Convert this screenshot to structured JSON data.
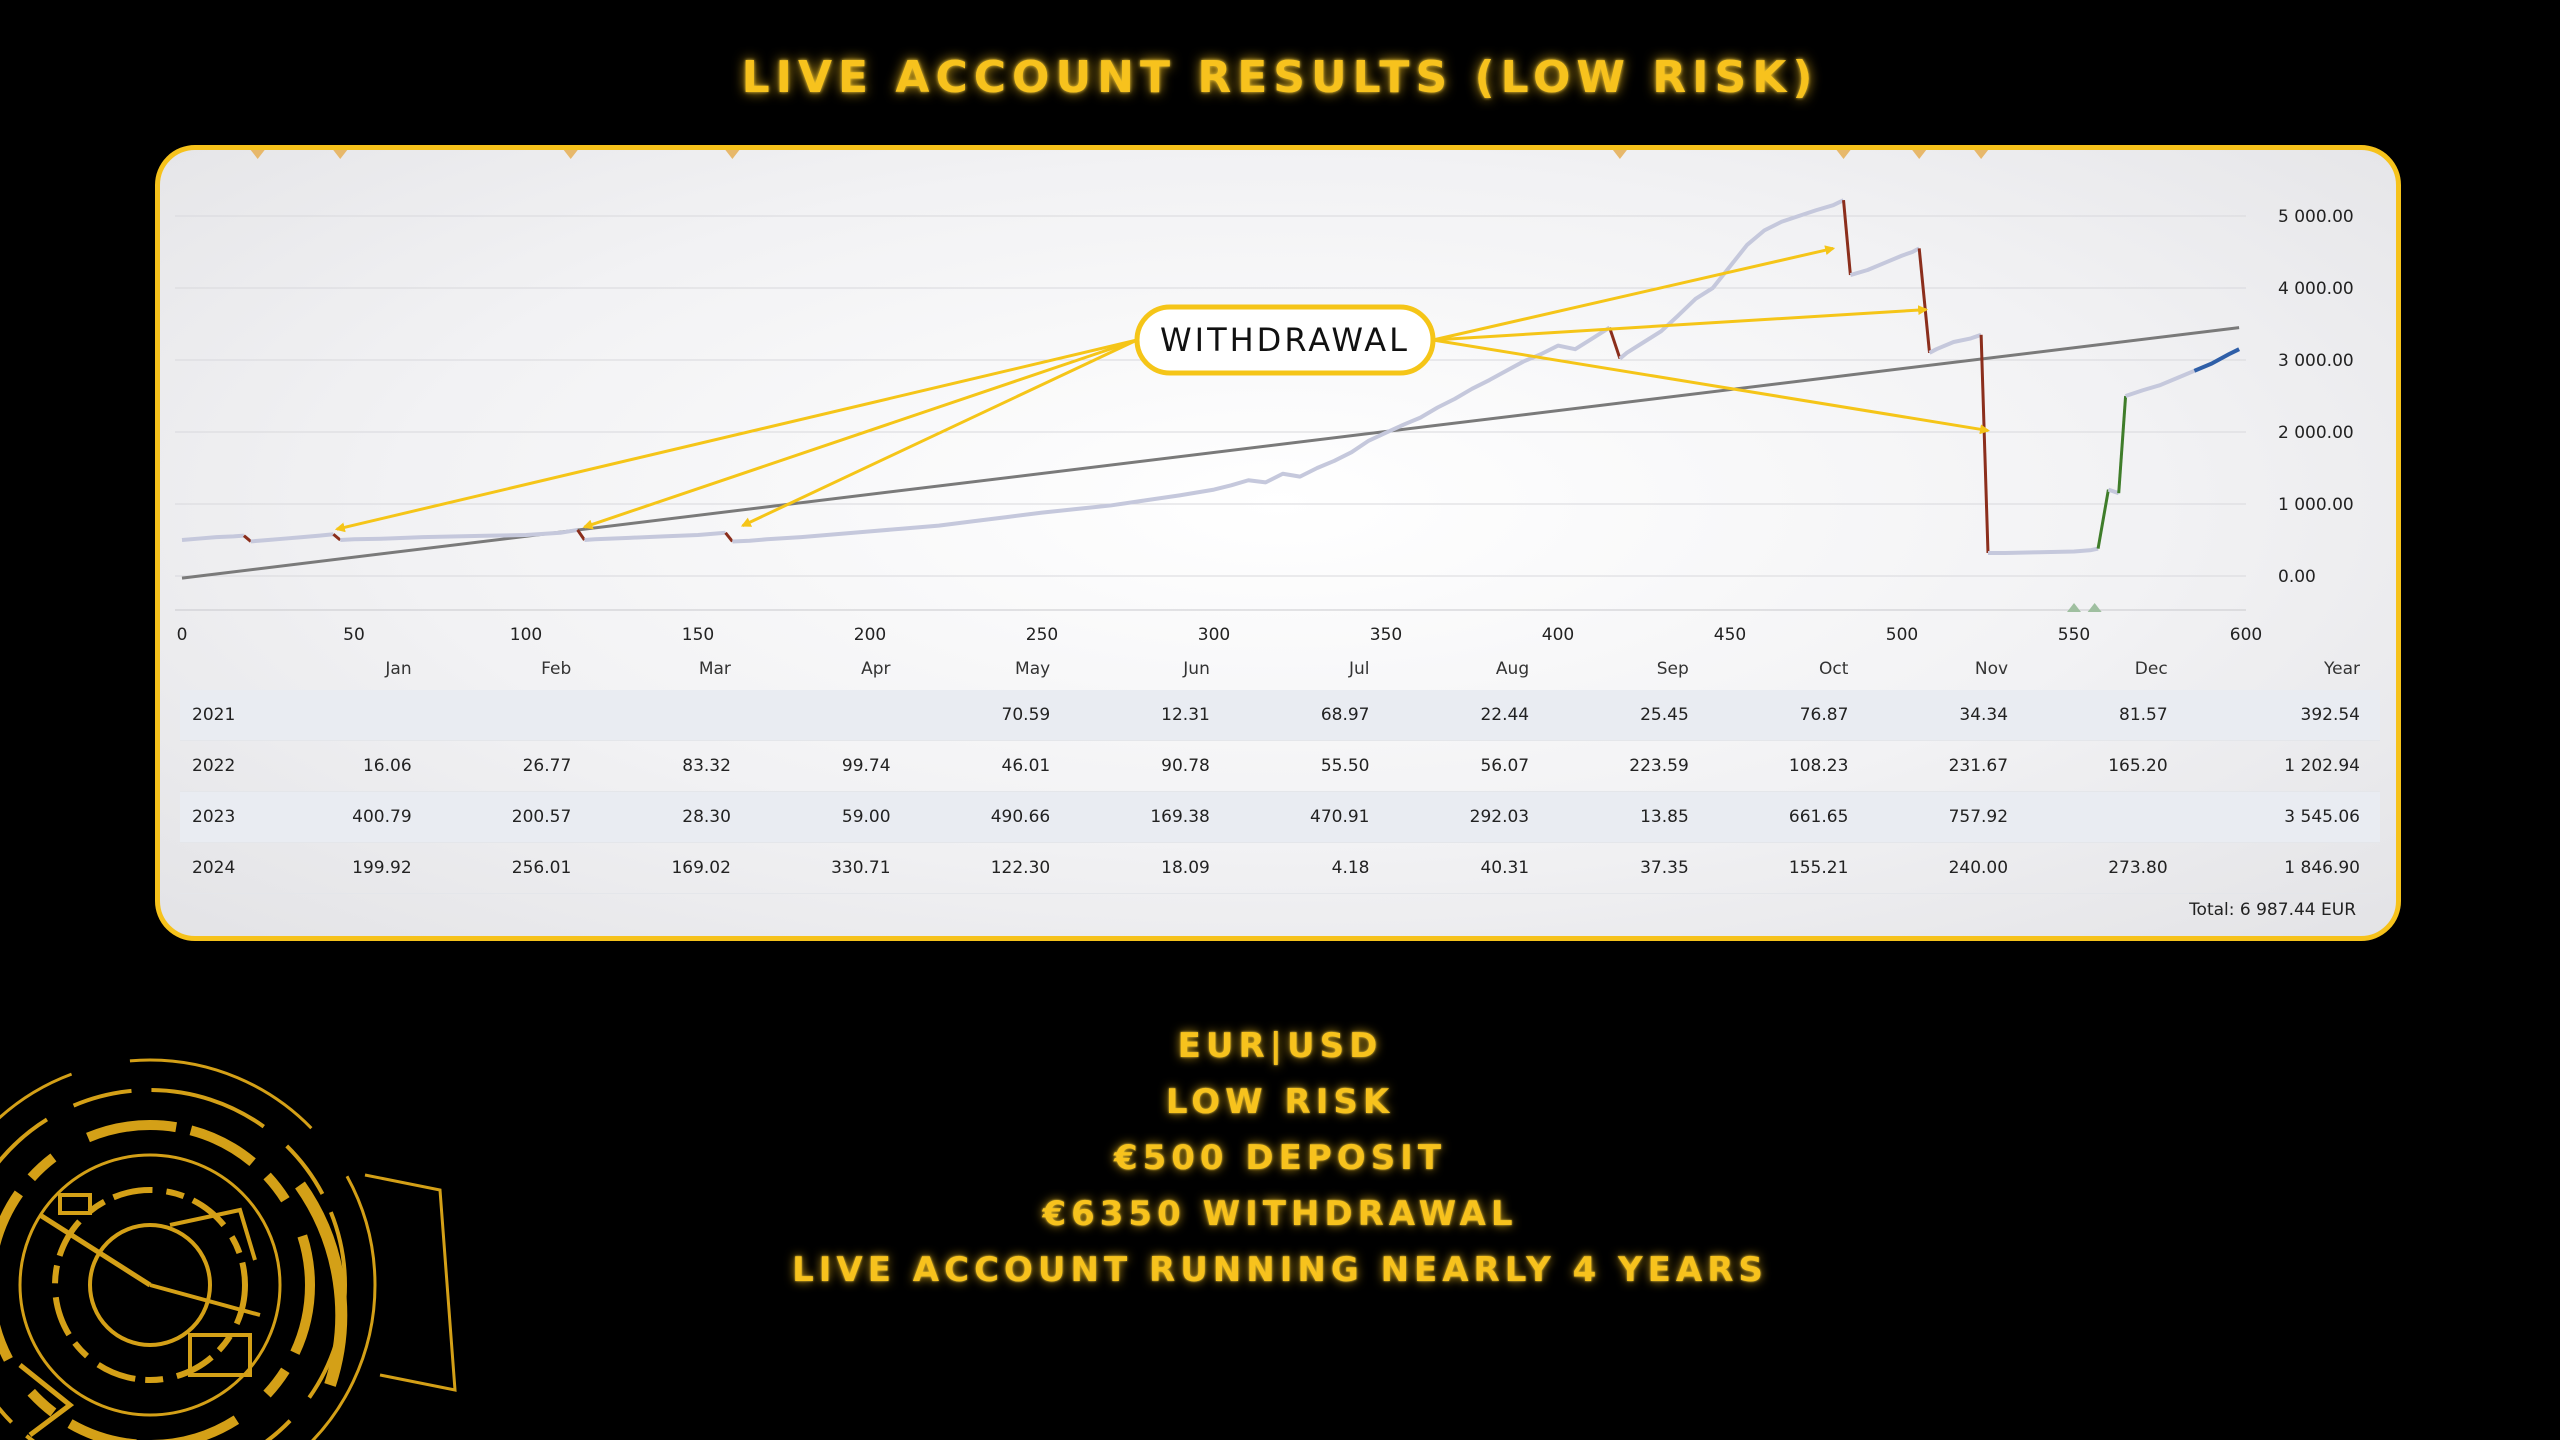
{
  "title": "LIVE ACCOUNT RESULTS (LOW RISK)",
  "colors": {
    "accent": "#f6c21b",
    "equity_line": "#c5c8dc",
    "trend_line": "#7a7a7a",
    "drop_segment": "#8b2e1c",
    "rise_segment": "#3f7d2a",
    "current_segment": "#2f5fa8",
    "arrow": "#f5c518",
    "background": "#000000"
  },
  "annotation": {
    "label": "WITHDRAWAL"
  },
  "chart_data": {
    "type": "line",
    "x_ticks": [
      0,
      50,
      100,
      150,
      200,
      250,
      300,
      350,
      400,
      450,
      500,
      550,
      600
    ],
    "y_ticks": [
      "0.00",
      "1 000.00",
      "2 000.00",
      "3 000.00",
      "4 000.00",
      "5 000.00"
    ],
    "xlim": [
      0,
      600
    ],
    "ylim": [
      -500,
      5500
    ],
    "grid": true,
    "series": [
      {
        "role": "equity",
        "x": [
          0,
          5,
          10,
          15,
          18,
          20,
          25,
          30,
          35,
          40,
          44,
          46,
          50,
          60,
          70,
          80,
          90,
          100,
          110,
          115,
          117,
          120,
          130,
          140,
          150,
          158,
          160,
          165,
          170,
          180,
          190,
          200,
          210,
          220,
          230,
          240,
          250,
          260,
          270,
          280,
          290,
          300,
          305,
          310,
          315,
          320,
          325,
          330,
          335,
          340,
          345,
          350,
          355,
          360,
          365,
          370,
          375,
          380,
          385,
          390,
          395,
          400,
          405,
          410,
          415,
          418,
          420,
          425,
          430,
          435,
          440,
          445,
          450,
          455,
          460,
          465,
          470,
          475,
          480,
          483,
          485,
          490,
          495,
          500,
          503,
          505,
          508,
          510,
          515,
          520,
          523,
          525,
          530,
          540,
          550,
          555,
          557,
          560,
          563,
          565,
          570,
          575,
          580,
          585,
          590,
          595,
          598
        ],
        "y": [
          500,
          520,
          540,
          550,
          560,
          480,
          500,
          520,
          540,
          560,
          580,
          500,
          510,
          520,
          540,
          550,
          560,
          570,
          600,
          640,
          500,
          510,
          530,
          550,
          570,
          600,
          480,
          490,
          510,
          540,
          580,
          620,
          660,
          700,
          760,
          820,
          880,
          930,
          980,
          1050,
          1120,
          1200,
          1260,
          1330,
          1300,
          1420,
          1380,
          1500,
          1600,
          1720,
          1880,
          1990,
          2100,
          2200,
          2340,
          2460,
          2600,
          2720,
          2850,
          2980,
          3080,
          3200,
          3150,
          3300,
          3450,
          3020,
          3100,
          3250,
          3400,
          3620,
          3850,
          4000,
          4300,
          4600,
          4800,
          4920,
          5000,
          5080,
          5150,
          5220,
          4180,
          4250,
          4350,
          4450,
          4500,
          4550,
          3100,
          3150,
          3250,
          3300,
          3350,
          320,
          320,
          330,
          340,
          360,
          380,
          1200,
          1150,
          2500,
          2580,
          2650,
          2750,
          2850,
          2950,
          3080,
          3150
        ]
      },
      {
        "role": "trend",
        "x": [
          0,
          598
        ],
        "y": [
          -30,
          3450
        ]
      }
    ],
    "monthly_table": {
      "columns": [
        "",
        "Jan",
        "Feb",
        "Mar",
        "Apr",
        "May",
        "Jun",
        "Jul",
        "Aug",
        "Sep",
        "Oct",
        "Nov",
        "Dec",
        "Year"
      ],
      "rows": [
        [
          "2021",
          "",
          "",
          "",
          "",
          "70.59",
          "12.31",
          "68.97",
          "22.44",
          "25.45",
          "76.87",
          "34.34",
          "81.57",
          "392.54"
        ],
        [
          "2022",
          "16.06",
          "26.77",
          "83.32",
          "99.74",
          "46.01",
          "90.78",
          "55.50",
          "56.07",
          "223.59",
          "108.23",
          "231.67",
          "165.20",
          "1 202.94"
        ],
        [
          "2023",
          "400.79",
          "200.57",
          "28.30",
          "59.00",
          "490.66",
          "169.38",
          "470.91",
          "292.03",
          "13.85",
          "661.65",
          "757.92",
          "",
          "3 545.06"
        ],
        [
          "2024",
          "199.92",
          "256.01",
          "169.02",
          "330.71",
          "122.30",
          "18.09",
          "4.18",
          "40.31",
          "37.35",
          "155.21",
          "240.00",
          "273.80",
          "1 846.90"
        ]
      ],
      "total": "Total: 6 987.44 EUR"
    }
  },
  "info_lines": [
    "EUR|USD",
    "LOW RISK",
    "€500 DEPOSIT",
    "€6350 WITHDRAWAL",
    "LIVE ACCOUNT RUNNING NEARLY 4 YEARS"
  ]
}
